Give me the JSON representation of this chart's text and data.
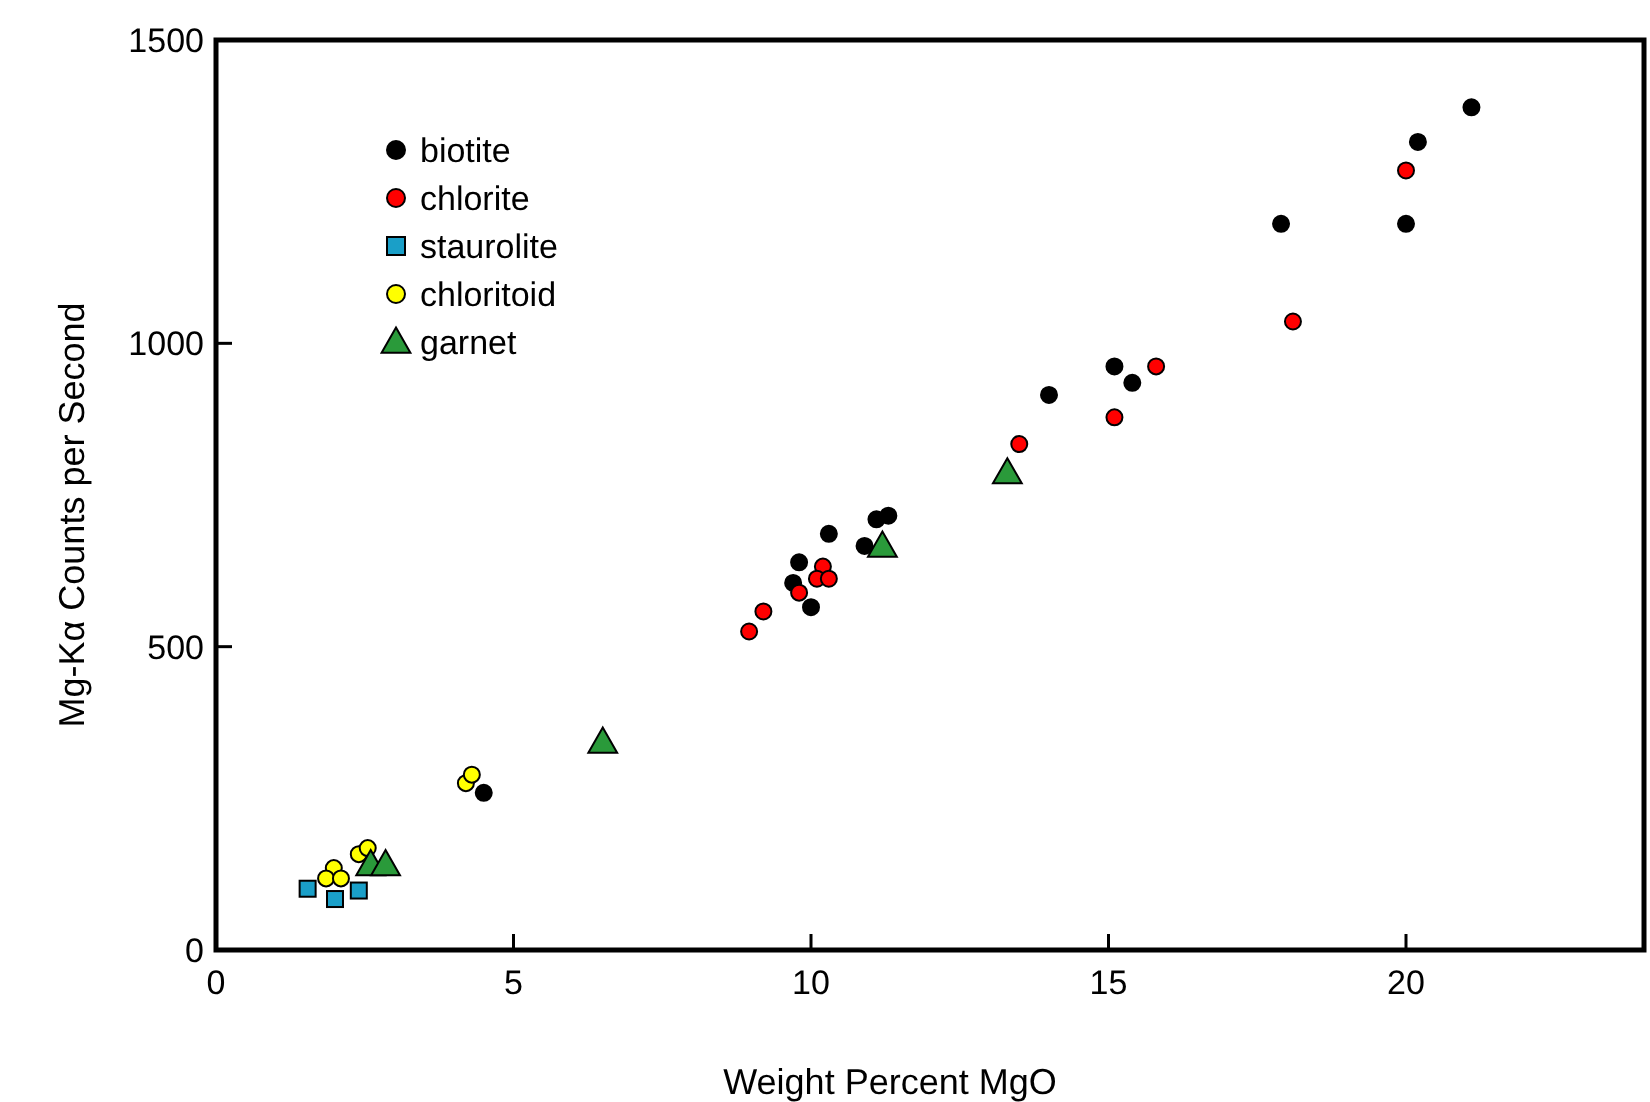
{
  "chart_data": {
    "type": "scatter",
    "xlabel": "Weight Percent MgO",
    "ylabel": "Mg-Kα Counts per Second",
    "xlim": [
      0,
      24
    ],
    "ylim": [
      0,
      1500
    ],
    "xticks": [
      0,
      5,
      10,
      15,
      20
    ],
    "yticks": [
      0,
      500,
      1000,
      1500
    ],
    "grid": false,
    "legend": "top left",
    "series": [
      {
        "name": "biotite",
        "color": "#000000",
        "marker": "circle",
        "x": [
          4.5,
          10.3,
          11.1,
          11.3,
          10.9,
          9.8,
          9.7,
          10.0,
          14.0,
          15.1,
          15.4,
          20.2,
          17.9,
          20.0,
          21.1
        ],
        "values": [
          259,
          686,
          710,
          716,
          666,
          639,
          605,
          565,
          915,
          962,
          935,
          1332,
          1197,
          1197,
          1389
        ]
      },
      {
        "name": "chlorite",
        "color": "#ff0000",
        "marker": "circle",
        "x": [
          10.2,
          10.1,
          10.3,
          9.8,
          9.2,
          8.96,
          15.8,
          15.1,
          13.5,
          20.0,
          18.1
        ],
        "values": [
          632,
          612,
          612,
          589,
          558,
          525,
          962,
          878,
          834,
          1285,
          1036
        ]
      },
      {
        "name": "staurolite",
        "color": "#1a9fc8",
        "marker": "square",
        "x": [
          1.54,
          2.0,
          2.4
        ],
        "values": [
          101,
          84,
          98
        ]
      },
      {
        "name": "chloritoid",
        "color": "#ffff00",
        "marker": "circle",
        "x": [
          4.2,
          4.3,
          2.4,
          2.55,
          1.98,
          1.85,
          2.1
        ],
        "values": [
          275,
          289,
          158,
          168,
          135,
          118,
          118
        ]
      },
      {
        "name": "garnet",
        "color": "#2a9a3a",
        "marker": "triangle",
        "x": [
          2.6,
          2.85,
          6.5,
          11.2,
          13.3
        ],
        "values": [
          141,
          141,
          343,
          666,
          787
        ]
      }
    ]
  }
}
